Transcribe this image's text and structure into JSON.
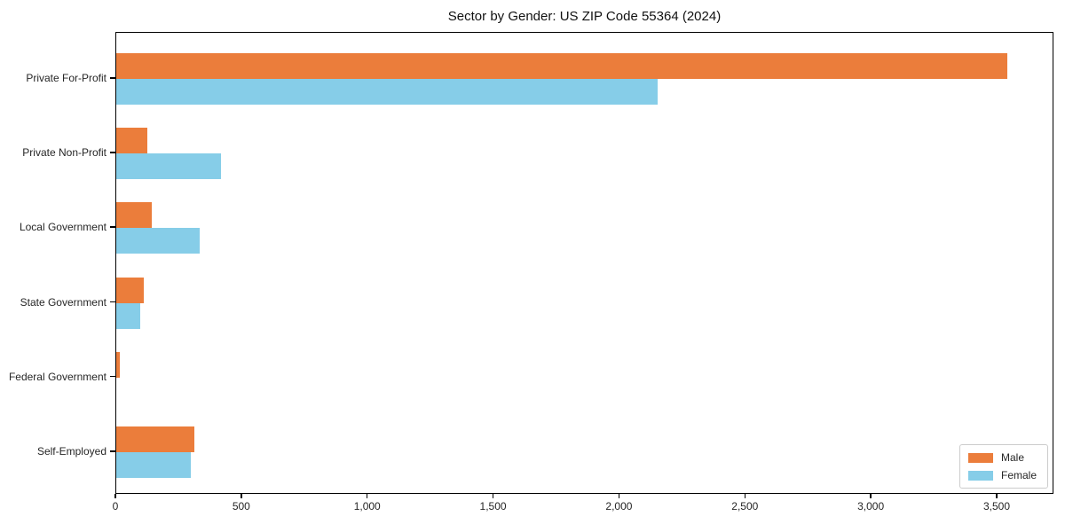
{
  "chart_data": {
    "type": "bar",
    "orientation": "horizontal",
    "title": "Sector by Gender: US ZIP Code 55364 (2024)",
    "xlabel": "",
    "ylabel": "",
    "grid": false,
    "legend_position": "lower right",
    "xlim": [
      0,
      3726
    ],
    "categories": [
      "Private For-Profit",
      "Private Non-Profit",
      "Local Government",
      "State Government",
      "Federal Government",
      "Self-Employed"
    ],
    "series": [
      {
        "name": "Male",
        "color": "#EB7D3B",
        "values": [
          3540,
          125,
          140,
          110,
          15,
          310
        ]
      },
      {
        "name": "Female",
        "color": "#86CDE8",
        "values": [
          2150,
          415,
          330,
          95,
          0,
          295
        ]
      }
    ],
    "xticks": [
      {
        "value": 0,
        "label": "0"
      },
      {
        "value": 500,
        "label": "500"
      },
      {
        "value": 1000,
        "label": "1,000"
      },
      {
        "value": 1500,
        "label": "1,500"
      },
      {
        "value": 2000,
        "label": "2,000"
      },
      {
        "value": 2500,
        "label": "2,500"
      },
      {
        "value": 3000,
        "label": "3,000"
      },
      {
        "value": 3500,
        "label": "3,500"
      }
    ]
  },
  "colors": {
    "axis": "#000000",
    "legend_border": "#cccccc",
    "text": "#262626",
    "background": "#ffffff"
  }
}
